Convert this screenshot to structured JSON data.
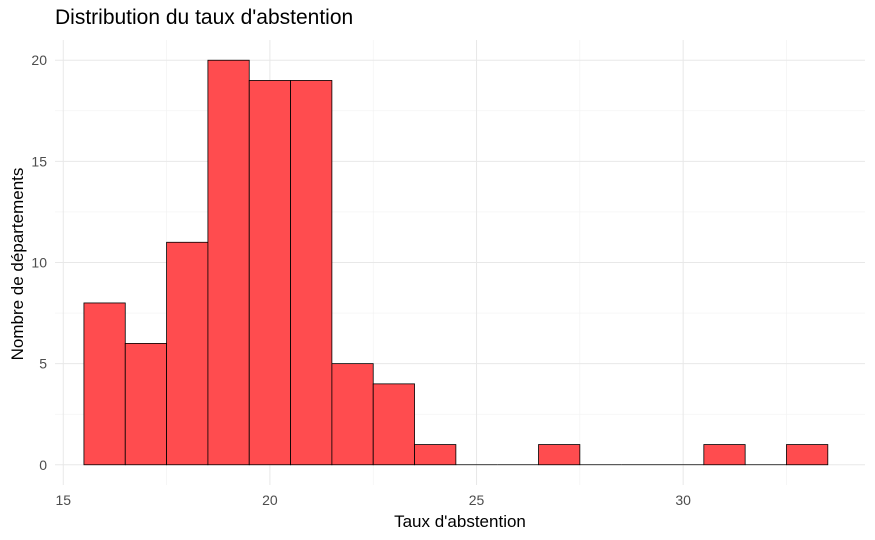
{
  "chart_data": {
    "type": "bar",
    "title": "Distribution du taux d'abstention",
    "xlabel": "Taux d'abstention",
    "ylabel": "Nombre de départements",
    "bins": [
      {
        "from": 15.5,
        "to": 16.5,
        "count": 8
      },
      {
        "from": 16.5,
        "to": 17.5,
        "count": 6
      },
      {
        "from": 17.5,
        "to": 18.5,
        "count": 11
      },
      {
        "from": 18.5,
        "to": 19.5,
        "count": 20
      },
      {
        "from": 19.5,
        "to": 20.5,
        "count": 19
      },
      {
        "from": 20.5,
        "to": 21.5,
        "count": 19
      },
      {
        "from": 21.5,
        "to": 22.5,
        "count": 5
      },
      {
        "from": 22.5,
        "to": 23.5,
        "count": 4
      },
      {
        "from": 23.5,
        "to": 24.5,
        "count": 1
      },
      {
        "from": 24.5,
        "to": 25.5,
        "count": 0
      },
      {
        "from": 25.5,
        "to": 26.5,
        "count": 0
      },
      {
        "from": 26.5,
        "to": 27.5,
        "count": 1
      },
      {
        "from": 27.5,
        "to": 28.5,
        "count": 0
      },
      {
        "from": 28.5,
        "to": 29.5,
        "count": 0
      },
      {
        "from": 29.5,
        "to": 30.5,
        "count": 0
      },
      {
        "from": 30.5,
        "to": 31.5,
        "count": 1
      },
      {
        "from": 31.5,
        "to": 32.5,
        "count": 0
      },
      {
        "from": 32.5,
        "to": 33.5,
        "count": 1
      }
    ],
    "xlim": [
      14.8,
      34.4
    ],
    "ylim": [
      -1,
      21
    ],
    "x_ticks": [
      "15",
      "20",
      "25",
      "30"
    ],
    "y_ticks": [
      "0",
      "5",
      "10",
      "15",
      "20"
    ],
    "grid": true,
    "legend": "none",
    "bar_color": "#ff4c4f",
    "bar_border_color": "#000000",
    "background_color": "#ffffff"
  }
}
